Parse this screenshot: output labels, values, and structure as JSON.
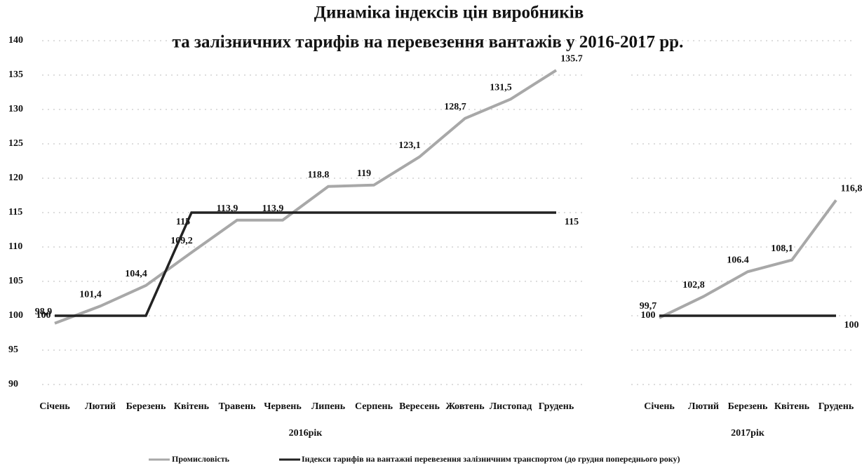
{
  "chart_data": [
    {
      "type": "line",
      "title": [
        "Динаміка індексів цін виробників",
        "та залізничних тарифів на перевезення вантажів  у 2016-2017 рр."
      ],
      "xlabel": "2016рік",
      "categories": [
        "Січень",
        "Лютий",
        "Березень",
        "Квітень",
        "Травень",
        "Червень",
        "Липень",
        "Серпень",
        "Вересень",
        "Жовтень",
        "Листопад",
        "Грудень"
      ],
      "ylim": [
        90,
        140
      ],
      "yticks": [
        90,
        95,
        100,
        105,
        110,
        115,
        120,
        125,
        130,
        135,
        140
      ],
      "grid": true,
      "series": [
        {
          "name": "Промисловість",
          "color": "#a8a8a8",
          "values": [
            98.9,
            101.4,
            104.4,
            109.2,
            113.9,
            113.9,
            118.8,
            119,
            123.1,
            128.7,
            131.5,
            135.7
          ],
          "value_labels": [
            "98,9",
            "101,4",
            "104,4",
            "109,2",
            "113,9",
            "113,9",
            "118.8",
            "119",
            "123,1",
            "128,7",
            "131,5",
            "135.7"
          ]
        },
        {
          "name": "Індекси тарифів на вантажні перевезення залізничним транспортом (до грудня попереднього року)",
          "color": "#222222",
          "values": [
            100,
            100,
            100,
            115,
            115,
            115,
            115,
            115,
            115,
            115,
            115,
            115
          ],
          "value_labels": [
            "100",
            null,
            null,
            "115",
            null,
            null,
            null,
            null,
            null,
            null,
            null,
            "115"
          ]
        }
      ]
    },
    {
      "type": "line",
      "xlabel": "2017рік",
      "categories": [
        "Січень",
        "Лютий",
        "Березень",
        "Квітень",
        "Грудень"
      ],
      "ylim": [
        90,
        140
      ],
      "series": [
        {
          "color": "#a8a8a8",
          "values": [
            99.7,
            102.8,
            106.4,
            108.1,
            116.8
          ],
          "value_labels": [
            "99,7",
            "102,8",
            "106.4",
            "108,1",
            "116,8"
          ]
        },
        {
          "color": "#222222",
          "values": [
            100,
            100,
            100,
            100,
            100
          ],
          "value_labels": [
            "100",
            null,
            null,
            null,
            "100"
          ]
        }
      ]
    }
  ]
}
